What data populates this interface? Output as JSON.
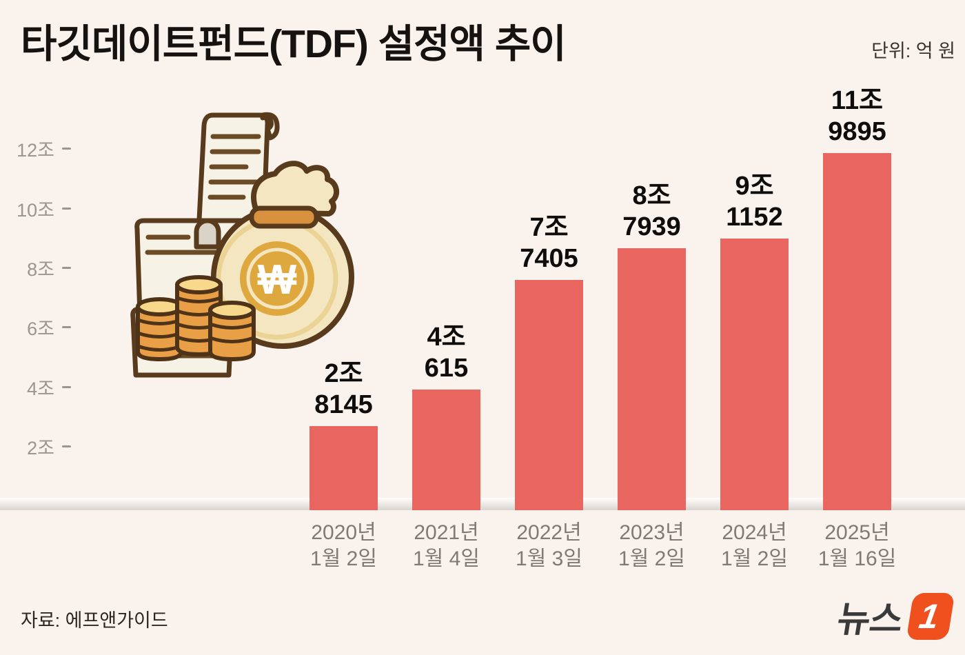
{
  "header": {
    "title": "타깃데이트펀드(TDF) 설정액 추이",
    "unit": "단위: 억 원"
  },
  "chart_data": {
    "type": "bar",
    "title": "타깃데이트펀드(TDF) 설정액 추이",
    "unit_label": "단위: 억 원",
    "categories": [
      "2020년 1월 2일",
      "2021년 1월 4일",
      "2022년 1월 3일",
      "2023년 1월 2일",
      "2024년 1월 2일",
      "2025년 1월 16일"
    ],
    "category_lines": [
      [
        "2020년",
        "1월 2일"
      ],
      [
        "2021년",
        "1월 4일"
      ],
      [
        "2022년",
        "1월 3일"
      ],
      [
        "2023년",
        "1월 2일"
      ],
      [
        "2024년",
        "1월 2일"
      ],
      [
        "2025년",
        "1월 16일"
      ]
    ],
    "values_eokwon": [
      28145,
      40615,
      77405,
      87939,
      91152,
      119895
    ],
    "bar_labels": [
      [
        "2조",
        "8145"
      ],
      [
        "4조",
        "615"
      ],
      [
        "7조",
        "7405"
      ],
      [
        "8조",
        "7939"
      ],
      [
        "9조",
        "1152"
      ],
      [
        "11조",
        "9895"
      ]
    ],
    "yticks": [
      {
        "value_jo": 2,
        "label": "2조"
      },
      {
        "value_jo": 4,
        "label": "4조"
      },
      {
        "value_jo": 6,
        "label": "6조"
      },
      {
        "value_jo": 8,
        "label": "8조"
      },
      {
        "value_jo": 10,
        "label": "10조"
      },
      {
        "value_jo": 12,
        "label": "12조"
      }
    ],
    "ylim_jo": [
      0,
      13
    ],
    "grid": false,
    "legend": "none",
    "bar_color": "#e9655f"
  },
  "illustration": {
    "name": "money-bag-coins-receipts",
    "currency_symbol": "₩"
  },
  "footer": {
    "source": "자료: 에프앤가이드",
    "logo_text": "뉴스",
    "logo_number": "1",
    "logo_color": "#f0501e"
  }
}
